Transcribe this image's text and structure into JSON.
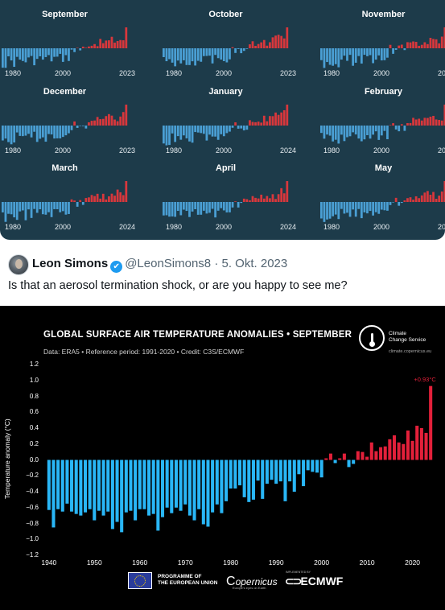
{
  "top_image": {
    "panels": [
      {
        "title": "September",
        "ticks": [
          "1980",
          "2000",
          "2023"
        ]
      },
      {
        "title": "October",
        "ticks": [
          "1980",
          "2000",
          "2023"
        ]
      },
      {
        "title": "November",
        "ticks": [
          "1980",
          "2000",
          "202"
        ]
      },
      {
        "title": "December",
        "ticks": [
          "1980",
          "2000",
          "2023"
        ]
      },
      {
        "title": "January",
        "ticks": [
          "1980",
          "2000",
          "2024"
        ]
      },
      {
        "title": "February",
        "ticks": [
          "1980",
          "2000",
          "202"
        ]
      },
      {
        "title": "March",
        "ticks": [
          "1980",
          "2000",
          "2024"
        ]
      },
      {
        "title": "April",
        "ticks": [
          "1980",
          "2000",
          "2024"
        ]
      },
      {
        "title": "May",
        "ticks": [
          "1980",
          "2000",
          "202"
        ]
      }
    ],
    "colors": {
      "background": "#1d3b4a",
      "negative": "#4a9fd4",
      "positive": "#d8373c"
    }
  },
  "tweet": {
    "name": "Leon Simons",
    "verified_icon": "verified-badge-icon",
    "handle": "@LeonSimons8",
    "separator": "·",
    "date": "5. Okt. 2023",
    "text": "Is that an aerosol termination shock, or are you happy to see me?"
  },
  "chart": {
    "title": "GLOBAL SURFACE AIR TEMPERATURE ANOMALIES • SEPTEMBER",
    "subtitle": "Data: ERA5 • Reference period: 1991-2020 • Credit: C3S/ECMWF",
    "logo_lines": [
      "Climate",
      "Change Service"
    ],
    "logo_url": "climate.copernicus.eu",
    "annotation": "+0.93°C",
    "footer": {
      "eu_line1": "PROGRAMME OF",
      "eu_line2": "THE EUROPEAN UNION",
      "copernicus": "opernicus",
      "copernicus_sub": "Europe's eyes on Earth",
      "implemented": "IMPLEMENTED BY",
      "ecmwf": "ECMWF"
    },
    "colors": {
      "negative": "#29b6f6",
      "positive": "#e3203a",
      "background": "#000000"
    }
  },
  "chart_data": {
    "type": "bar",
    "title": "GLOBAL SURFACE AIR TEMPERATURE ANOMALIES • SEPTEMBER",
    "ylabel": "Temperature anomaly (°C)",
    "ylim": [
      -1.2,
      1.2
    ],
    "yticks": [
      -1.2,
      -1.0,
      -0.8,
      -0.6,
      -0.4,
      -0.2,
      0.0,
      0.2,
      0.4,
      0.6,
      0.8,
      1.0,
      1.2
    ],
    "ytick_labels": [
      "−1.2",
      "−1.0",
      "−0.8",
      "−0.6",
      "−0.4",
      "−0.2",
      "0.0",
      "0.2",
      "0.4",
      "0.6",
      "0.8",
      "1.0",
      "1.2"
    ],
    "xticks": [
      1940,
      1950,
      1960,
      1970,
      1980,
      1990,
      2000,
      2010,
      2020
    ],
    "x_start": 1940,
    "values": [
      -0.63,
      -0.85,
      -0.62,
      -0.65,
      -0.55,
      -0.65,
      -0.68,
      -0.7,
      -0.66,
      -0.62,
      -0.76,
      -0.64,
      -0.7,
      -0.65,
      -0.87,
      -0.78,
      -0.91,
      -0.66,
      -0.64,
      -0.76,
      -0.62,
      -0.62,
      -0.7,
      -0.68,
      -0.89,
      -0.72,
      -0.6,
      -0.67,
      -0.6,
      -0.64,
      -0.56,
      -0.7,
      -0.76,
      -0.62,
      -0.81,
      -0.84,
      -0.66,
      -0.56,
      -0.67,
      -0.52,
      -0.36,
      -0.36,
      -0.32,
      -0.47,
      -0.53,
      -0.5,
      -0.26,
      -0.49,
      -0.3,
      -0.25,
      -0.3,
      -0.27,
      -0.52,
      -0.27,
      -0.4,
      -0.18,
      -0.33,
      -0.13,
      -0.15,
      -0.16,
      -0.22,
      0.02,
      0.08,
      -0.04,
      0.02,
      0.08,
      -0.09,
      -0.05,
      0.11,
      0.1,
      0.04,
      0.22,
      0.11,
      0.16,
      0.17,
      0.26,
      0.31,
      0.22,
      0.2,
      0.37,
      0.24,
      0.43,
      0.4,
      0.34,
      0.93
    ]
  }
}
